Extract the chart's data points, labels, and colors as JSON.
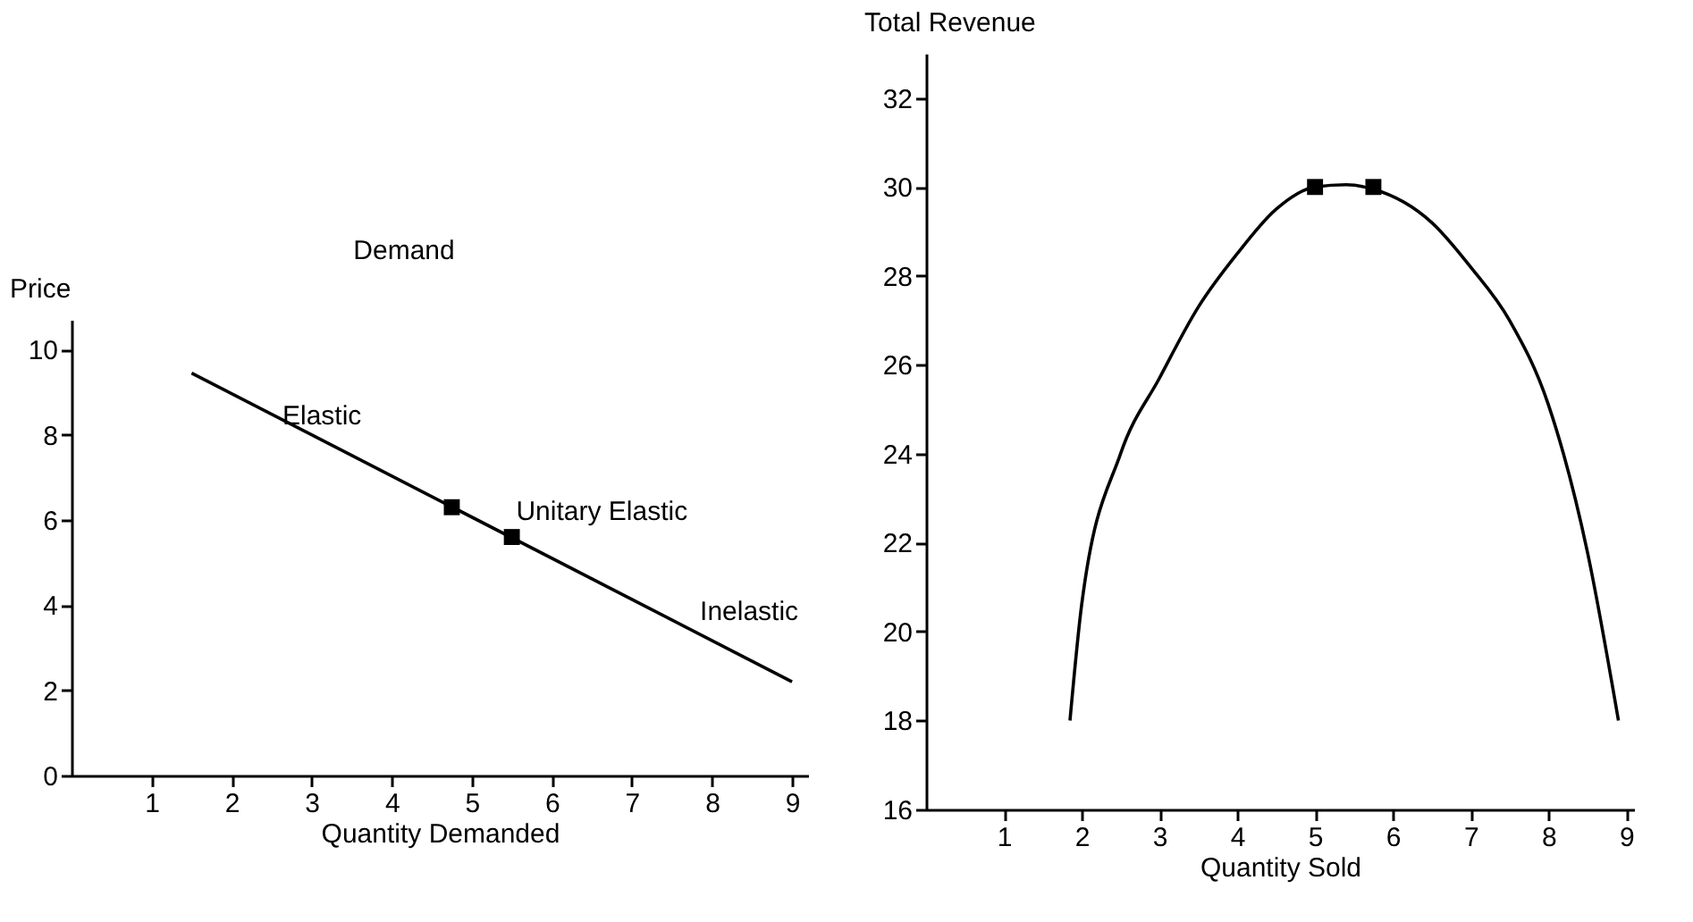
{
  "chart_data": [
    {
      "type": "line",
      "title": "Demand",
      "xlabel": "Quantity Demanded",
      "ylabel": "Price",
      "xlim": [
        0,
        9.2
      ],
      "ylim": [
        0,
        10.7
      ],
      "xticks": [
        1,
        2,
        3,
        4,
        5,
        6,
        7,
        8,
        9
      ],
      "yticks": [
        0,
        2,
        4,
        6,
        8,
        10
      ],
      "grid": false,
      "series": [
        {
          "color": "#000000",
          "marker": "none",
          "x": [
            1.5,
            9
          ],
          "values": [
            9.45,
            2.2
          ]
        },
        {
          "type": "scatter",
          "color": "#000000",
          "marker": "square",
          "x": [
            4.75,
            5.5
          ],
          "values": [
            6.3,
            5.6
          ]
        }
      ],
      "annotations": [
        "Elastic",
        "Unitary Elastic",
        "Inelastic"
      ]
    },
    {
      "type": "line",
      "xlabel": "Quantity Sold",
      "ylabel": "Total Revenue",
      "xlim": [
        0,
        9.1
      ],
      "ylim": [
        16,
        33
      ],
      "xticks": [
        1,
        2,
        3,
        4,
        5,
        6,
        7,
        8,
        9
      ],
      "yticks": [
        16,
        18,
        20,
        22,
        24,
        26,
        28,
        30,
        32
      ],
      "grid": false,
      "series": [
        {
          "color": "#000000",
          "marker": "none",
          "x": [
            1.85,
            2,
            2.5,
            3,
            3.5,
            4,
            4.5,
            5,
            5.4,
            5.75,
            6.5,
            7,
            7.5,
            8,
            8.5,
            8.9
          ],
          "values": [
            18,
            20.6,
            24,
            25.7,
            27.3,
            28.5,
            29.5,
            30,
            30.05,
            29.95,
            29.2,
            28.2,
            27,
            25.1,
            21.8,
            18
          ]
        },
        {
          "type": "scatter",
          "color": "#000000",
          "marker": "square",
          "x": [
            5,
            5.75
          ],
          "values": [
            30,
            30
          ]
        }
      ]
    }
  ]
}
